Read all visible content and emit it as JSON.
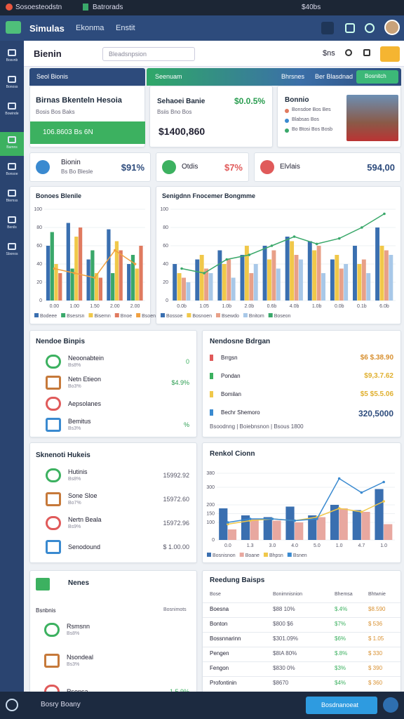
{
  "browser": {
    "tab1": "Sosoesteodstn",
    "tab2": "Batrorads",
    "right": "$40bs"
  },
  "header": {
    "logo": "Simulas",
    "nav": [
      "Ekonma",
      "Enstit"
    ]
  },
  "sidebar": [
    "Bosvnb",
    "Bonoss",
    "Bowinde",
    "Bamns",
    "Bonsoe",
    "Btemss",
    "Benils",
    "Sbonos"
  ],
  "topbar": {
    "title": "Bienin",
    "search": "Bleadsnpsion",
    "currency": "$ns"
  },
  "banner_left": "Seol Bionis",
  "banner_right": {
    "title": "Seenuam",
    "links": [
      "Bhrsnes",
      "Ber Blasdnad"
    ],
    "button": "Bosnitch"
  },
  "card1": {
    "title": "Birnas Bkenteln Hesoia",
    "subtitle": "Bosis Bos Baks",
    "bar": "106.8603 Bs 6N"
  },
  "card2": {
    "title": "Sehaoei Banie",
    "percent": "$0.0.5%",
    "subtitle": "Bsiis Bno Bos",
    "amount": "$1400,860"
  },
  "card3": {
    "title": "Bonnio",
    "items": [
      "Bonsdoe Bos Bes",
      "Blabsas Bos",
      "Bo Btosi Bos Bosb"
    ]
  },
  "stats": [
    {
      "label": "Bionin",
      "sub": "Bs Bo Blesle",
      "value": "$91%"
    },
    {
      "label": "Otdis",
      "value": "$7%"
    },
    {
      "label": "Elvlais",
      "value": "594,00"
    }
  ],
  "chart1": {
    "title": "Bonoes Blenile",
    "categories": [
      "0.00",
      "1.00",
      "1.50",
      "2.00",
      "2.00"
    ],
    "ylim": [
      0,
      100
    ],
    "yticks": [
      0,
      20,
      40,
      60,
      80,
      100
    ],
    "series": [
      {
        "name": "Bodeee",
        "type": "bar",
        "color": "#3a6fb0",
        "values": [
          60,
          85,
          45,
          78,
          40
        ]
      },
      {
        "name": "Bsesrsn",
        "type": "bar",
        "color": "#3aa86a",
        "values": [
          75,
          35,
          55,
          30,
          50
        ]
      },
      {
        "name": "Bisemn",
        "type": "bar",
        "color": "#f0c84a",
        "values": [
          40,
          70,
          30,
          65,
          35
        ]
      },
      {
        "name": "Bnoe",
        "type": "bar",
        "color": "#e07a5f",
        "values": [
          30,
          80,
          25,
          55,
          60
        ]
      },
      {
        "name": "Bsoene",
        "type": "line",
        "color": "#f0a040",
        "values": [
          35,
          30,
          25,
          55,
          40
        ]
      }
    ]
  },
  "chart2": {
    "title": "Senigdnn Fnocemer Bongmme",
    "categories": [
      "0.0b",
      "1.05",
      "1.0b",
      "2.0b",
      "0.6b",
      "4.0b",
      "1.0b",
      "0.0b",
      "0.1b",
      "6.0b"
    ],
    "ylim": [
      0,
      100
    ],
    "yticks": [
      0,
      20,
      40,
      60,
      80,
      100
    ],
    "series": [
      {
        "name": "Bossoe",
        "type": "bar",
        "color": "#3a6fb0",
        "values": [
          40,
          45,
          55,
          50,
          60,
          70,
          65,
          45,
          60,
          80
        ]
      },
      {
        "name": "Bosnoen",
        "type": "bar",
        "color": "#f0c84a",
        "values": [
          30,
          50,
          40,
          60,
          45,
          65,
          55,
          50,
          40,
          60
        ]
      },
      {
        "name": "Bsewdo",
        "type": "bar",
        "color": "#e8a088",
        "values": [
          25,
          35,
          45,
          30,
          55,
          50,
          60,
          35,
          45,
          55
        ]
      },
      {
        "name": "Bnitom",
        "type": "bar",
        "color": "#a8c8e8",
        "values": [
          20,
          30,
          25,
          40,
          35,
          45,
          30,
          40,
          30,
          50
        ]
      },
      {
        "name": "Boseon",
        "type": "line",
        "color": "#3aa86a",
        "values": [
          35,
          30,
          45,
          50,
          60,
          70,
          62,
          68,
          80,
          95
        ]
      }
    ]
  },
  "chart3": {
    "title": "Renkol Cionn",
    "categories": [
      "0.0",
      "1.3",
      "3.0",
      "4.0",
      "5.0",
      "1.0",
      "4.7",
      "1.0"
    ],
    "ylim": [
      0,
      400
    ],
    "yticks": [
      0,
      100,
      150,
      200,
      300,
      380
    ],
    "series": [
      {
        "name": "Bosnisnon",
        "type": "bar",
        "color": "#3a6fb0",
        "values": [
          180,
          140,
          130,
          190,
          140,
          200,
          170,
          290
        ]
      },
      {
        "name": "Boane",
        "type": "bar",
        "color": "#e8a8a0",
        "values": [
          60,
          120,
          110,
          100,
          130,
          180,
          160,
          90
        ]
      },
      {
        "name": "Bhpsn",
        "type": "line",
        "color": "#f0c84a",
        "values": [
          90,
          110,
          120,
          110,
          130,
          180,
          160,
          220
        ]
      },
      {
        "name": "Bsnen",
        "type": "line",
        "color": "#3a8ad0",
        "values": [
          100,
          120,
          120,
          110,
          120,
          350,
          270,
          330
        ]
      }
    ]
  },
  "list1": {
    "title": "Nendoe Binpis",
    "items": [
      {
        "label": "Neoonabtein",
        "sub": "Bs8%",
        "value": "0"
      },
      {
        "label": "Netn Etieon",
        "sub": "Bo3%",
        "value": "$4.9%"
      },
      {
        "label": "Aepsolanes",
        "value": ""
      },
      {
        "label": "Bemitus",
        "sub": "Bs3%",
        "value": "%"
      }
    ]
  },
  "list2": {
    "title": "Nendosne Bdrgan",
    "items": [
      {
        "label": "Brrgsn",
        "value": "$6 $.38.90"
      },
      {
        "label": "Pondan",
        "value": "$9,3.7.62"
      },
      {
        "label": "Bomilan",
        "value": "$5 $5.5.06"
      },
      {
        "label": "Bechr Shemoro",
        "value": "320,5000"
      }
    ],
    "footer": "Bsoodnng | Boiebnsnon | Bsous 1800"
  },
  "list3": {
    "title": "Sknenoti Hukeis",
    "items": [
      {
        "label": "Hutinis",
        "sub": "Bs8%",
        "value": "15992.92"
      },
      {
        "label": "Sone Sloe",
        "sub": "Bo7%",
        "value": "15972.60"
      },
      {
        "label": "Nertn Beala",
        "sub": "Bs9%",
        "value": "15972.96"
      },
      {
        "label": "Senodound",
        "value": "$ 1.00.00"
      }
    ]
  },
  "list4": {
    "title": "Nenes",
    "subhead": "Bsnbnis",
    "subhead_right": "Bosnimots",
    "items": [
      {
        "label": "Rsmsnn",
        "sub": "Bs8%",
        "value": ""
      },
      {
        "label": "Nsondeal",
        "sub": "Bs3%",
        "value": ""
      },
      {
        "label": "Rsonsa",
        "value": "1.5.9%"
      }
    ]
  },
  "table": {
    "title": "Reedung Baisps",
    "header": [
      "Bose",
      "Bonimnisnion",
      "Bhemsa",
      "Bhtwnie"
    ],
    "rows": [
      [
        "Boesna",
        "$88 10%",
        "$.4%",
        "$8.590"
      ],
      [
        "Bonton",
        "$800 $6",
        "$7%",
        "$ 536"
      ],
      [
        "Bossnnarinn",
        "$301.09%",
        "$6%",
        "$ 1.05"
      ],
      [
        "Pengen",
        "$8IA 80%",
        "$.8%",
        "$ 330"
      ],
      [
        "Fengon",
        "$830 0%",
        "$3%",
        "$ 390"
      ],
      [
        "Profontinin",
        "$8670",
        "$4%",
        "$ 360"
      ]
    ]
  },
  "footer": {
    "left": "Bosry Boany",
    "button": "Bosdnanoeat"
  }
}
